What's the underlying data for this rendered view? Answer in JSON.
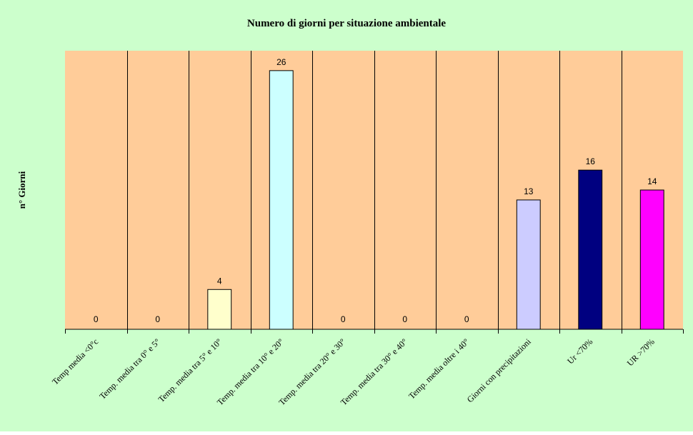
{
  "chart_data": {
    "type": "bar",
    "title": "Numero di giorni per situazione ambientale",
    "xlabel": "",
    "ylabel": "n° Giorni",
    "categories": [
      "Temp media <0°c",
      "Temp. media tra 0° e 5°",
      "Temp. media tra 5° e 10°",
      "Temp. media tra 10° e 20°",
      "Temp. media tra 20° e 30°",
      "Temp. media tra 30° e 40°",
      "Temp. media oltre i 40°",
      "Giorni con precipitazioni",
      "Ur <70%",
      "UR >70%"
    ],
    "values": [
      0,
      0,
      4,
      26,
      0,
      0,
      0,
      13,
      16,
      14
    ],
    "bar_colors": [
      "#FFFFCC",
      "#FFFFCC",
      "#FFFFCC",
      "#CCFFFF",
      "#FFFFCC",
      "#FFFFCC",
      "#FFFFCC",
      "#CCCCFF",
      "#000080",
      "#FF00FF"
    ],
    "ylim": [
      0,
      28
    ],
    "grid": false,
    "legend": "none",
    "colors": {
      "background": "#CCFFCC",
      "plot_area": "#FFCC99",
      "separators": "#000000"
    }
  }
}
